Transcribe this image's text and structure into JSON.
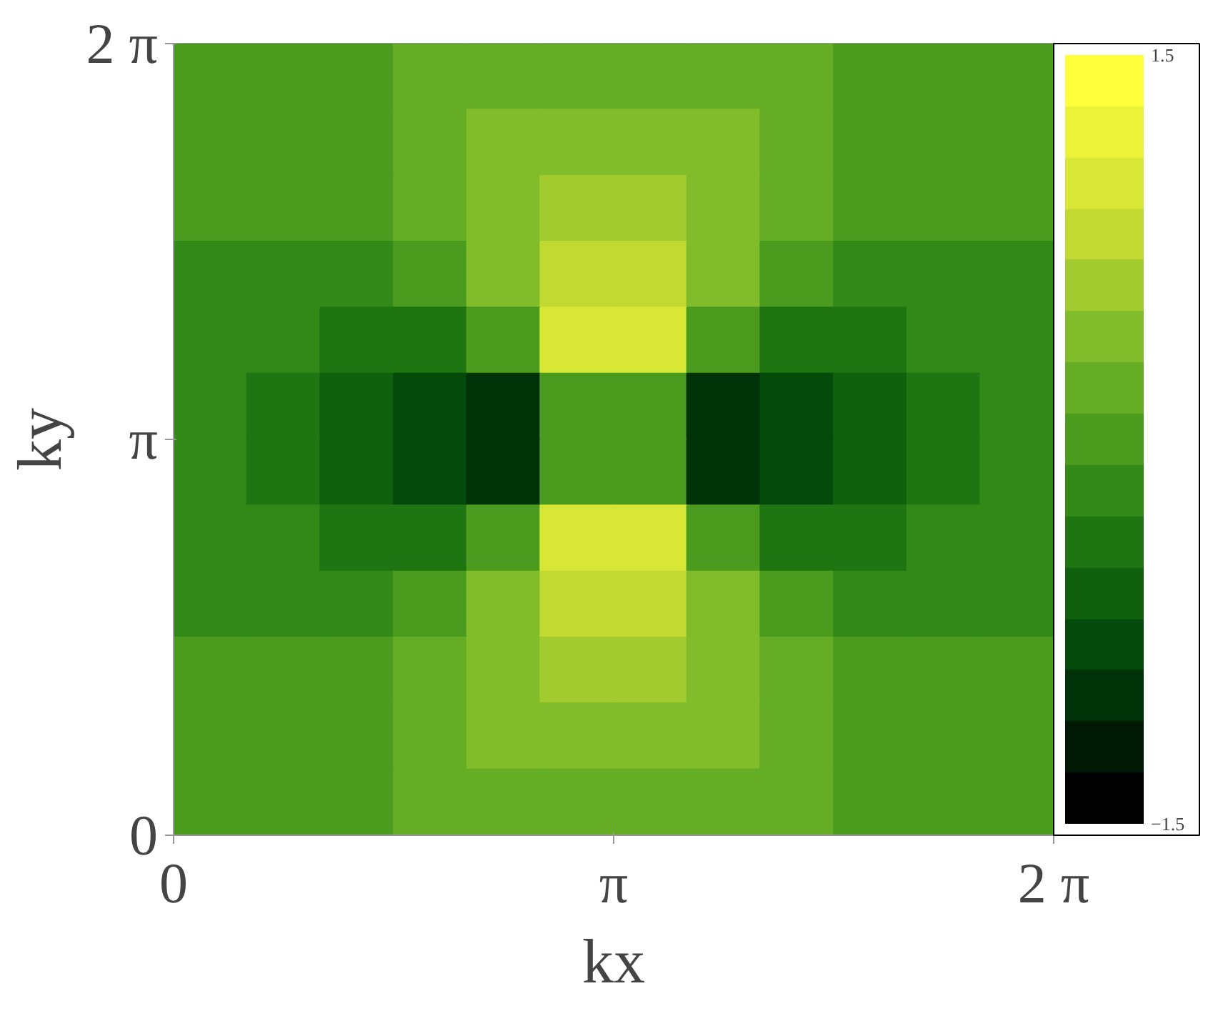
{
  "chart_data": {
    "type": "heatmap",
    "xlabel": "kx",
    "ylabel": "ky",
    "xlim": [
      0,
      6.2832
    ],
    "ylim": [
      0,
      6.2832
    ],
    "xticks": [
      0,
      {
        "value": 3.1416,
        "label": "π"
      },
      {
        "value": 6.2832,
        "label": "2 π"
      }
    ],
    "yticks": [
      0,
      {
        "value": 3.1416,
        "label": "π"
      },
      {
        "value": 6.2832,
        "label": "2 π"
      }
    ],
    "clim": [
      -1.5,
      1.5
    ],
    "cticks": [
      -1.5,
      1.5
    ],
    "cells": [
      [
        0,
        0.04,
        0.09,
        0.17,
        0.24,
        0.29,
        0.29,
        0.24,
        0.17,
        0.09,
        0.04,
        0
      ],
      [
        -0.04,
        0,
        0.07,
        0.17,
        0.3,
        0.4,
        0.4,
        0.3,
        0.17,
        0.07,
        0,
        -0.04
      ],
      [
        -0.09,
        -0.07,
        0,
        0.14,
        0.37,
        0.57,
        0.57,
        0.37,
        0.14,
        0,
        -0.07,
        -0.09
      ],
      [
        -0.17,
        -0.17,
        -0.14,
        0,
        0.36,
        0.82,
        0.82,
        0.36,
        0,
        -0.14,
        -0.17,
        -0.17
      ],
      [
        -0.24,
        -0.3,
        -0.37,
        -0.36,
        0,
        1.08,
        1.08,
        0,
        -0.36,
        -0.37,
        -0.3,
        -0.24
      ],
      [
        -0.29,
        -0.4,
        -0.57,
        -0.82,
        -1.08,
        0,
        0,
        -1.08,
        -0.82,
        -0.57,
        -0.4,
        -0.29
      ],
      [
        -0.29,
        -0.4,
        -0.57,
        -0.82,
        -1.08,
        0,
        0,
        -1.08,
        -0.82,
        -0.57,
        -0.4,
        -0.29
      ],
      [
        -0.24,
        -0.3,
        -0.37,
        -0.36,
        0,
        1.08,
        1.08,
        0,
        -0.36,
        -0.37,
        -0.3,
        -0.24
      ],
      [
        -0.17,
        -0.17,
        -0.14,
        0,
        0.36,
        0.82,
        0.82,
        0.36,
        0,
        -0.14,
        -0.17,
        -0.17
      ],
      [
        -0.09,
        -0.07,
        0,
        0.14,
        0.37,
        0.57,
        0.57,
        0.37,
        0.14,
        0,
        -0.07,
        -0.09
      ],
      [
        -0.04,
        0,
        0.07,
        0.17,
        0.3,
        0.4,
        0.4,
        0.3,
        0.17,
        0.07,
        0,
        -0.04
      ],
      [
        0,
        0.04,
        0.09,
        0.17,
        0.24,
        0.29,
        0.29,
        0.24,
        0.17,
        0.09,
        0.04,
        0
      ]
    ]
  }
}
